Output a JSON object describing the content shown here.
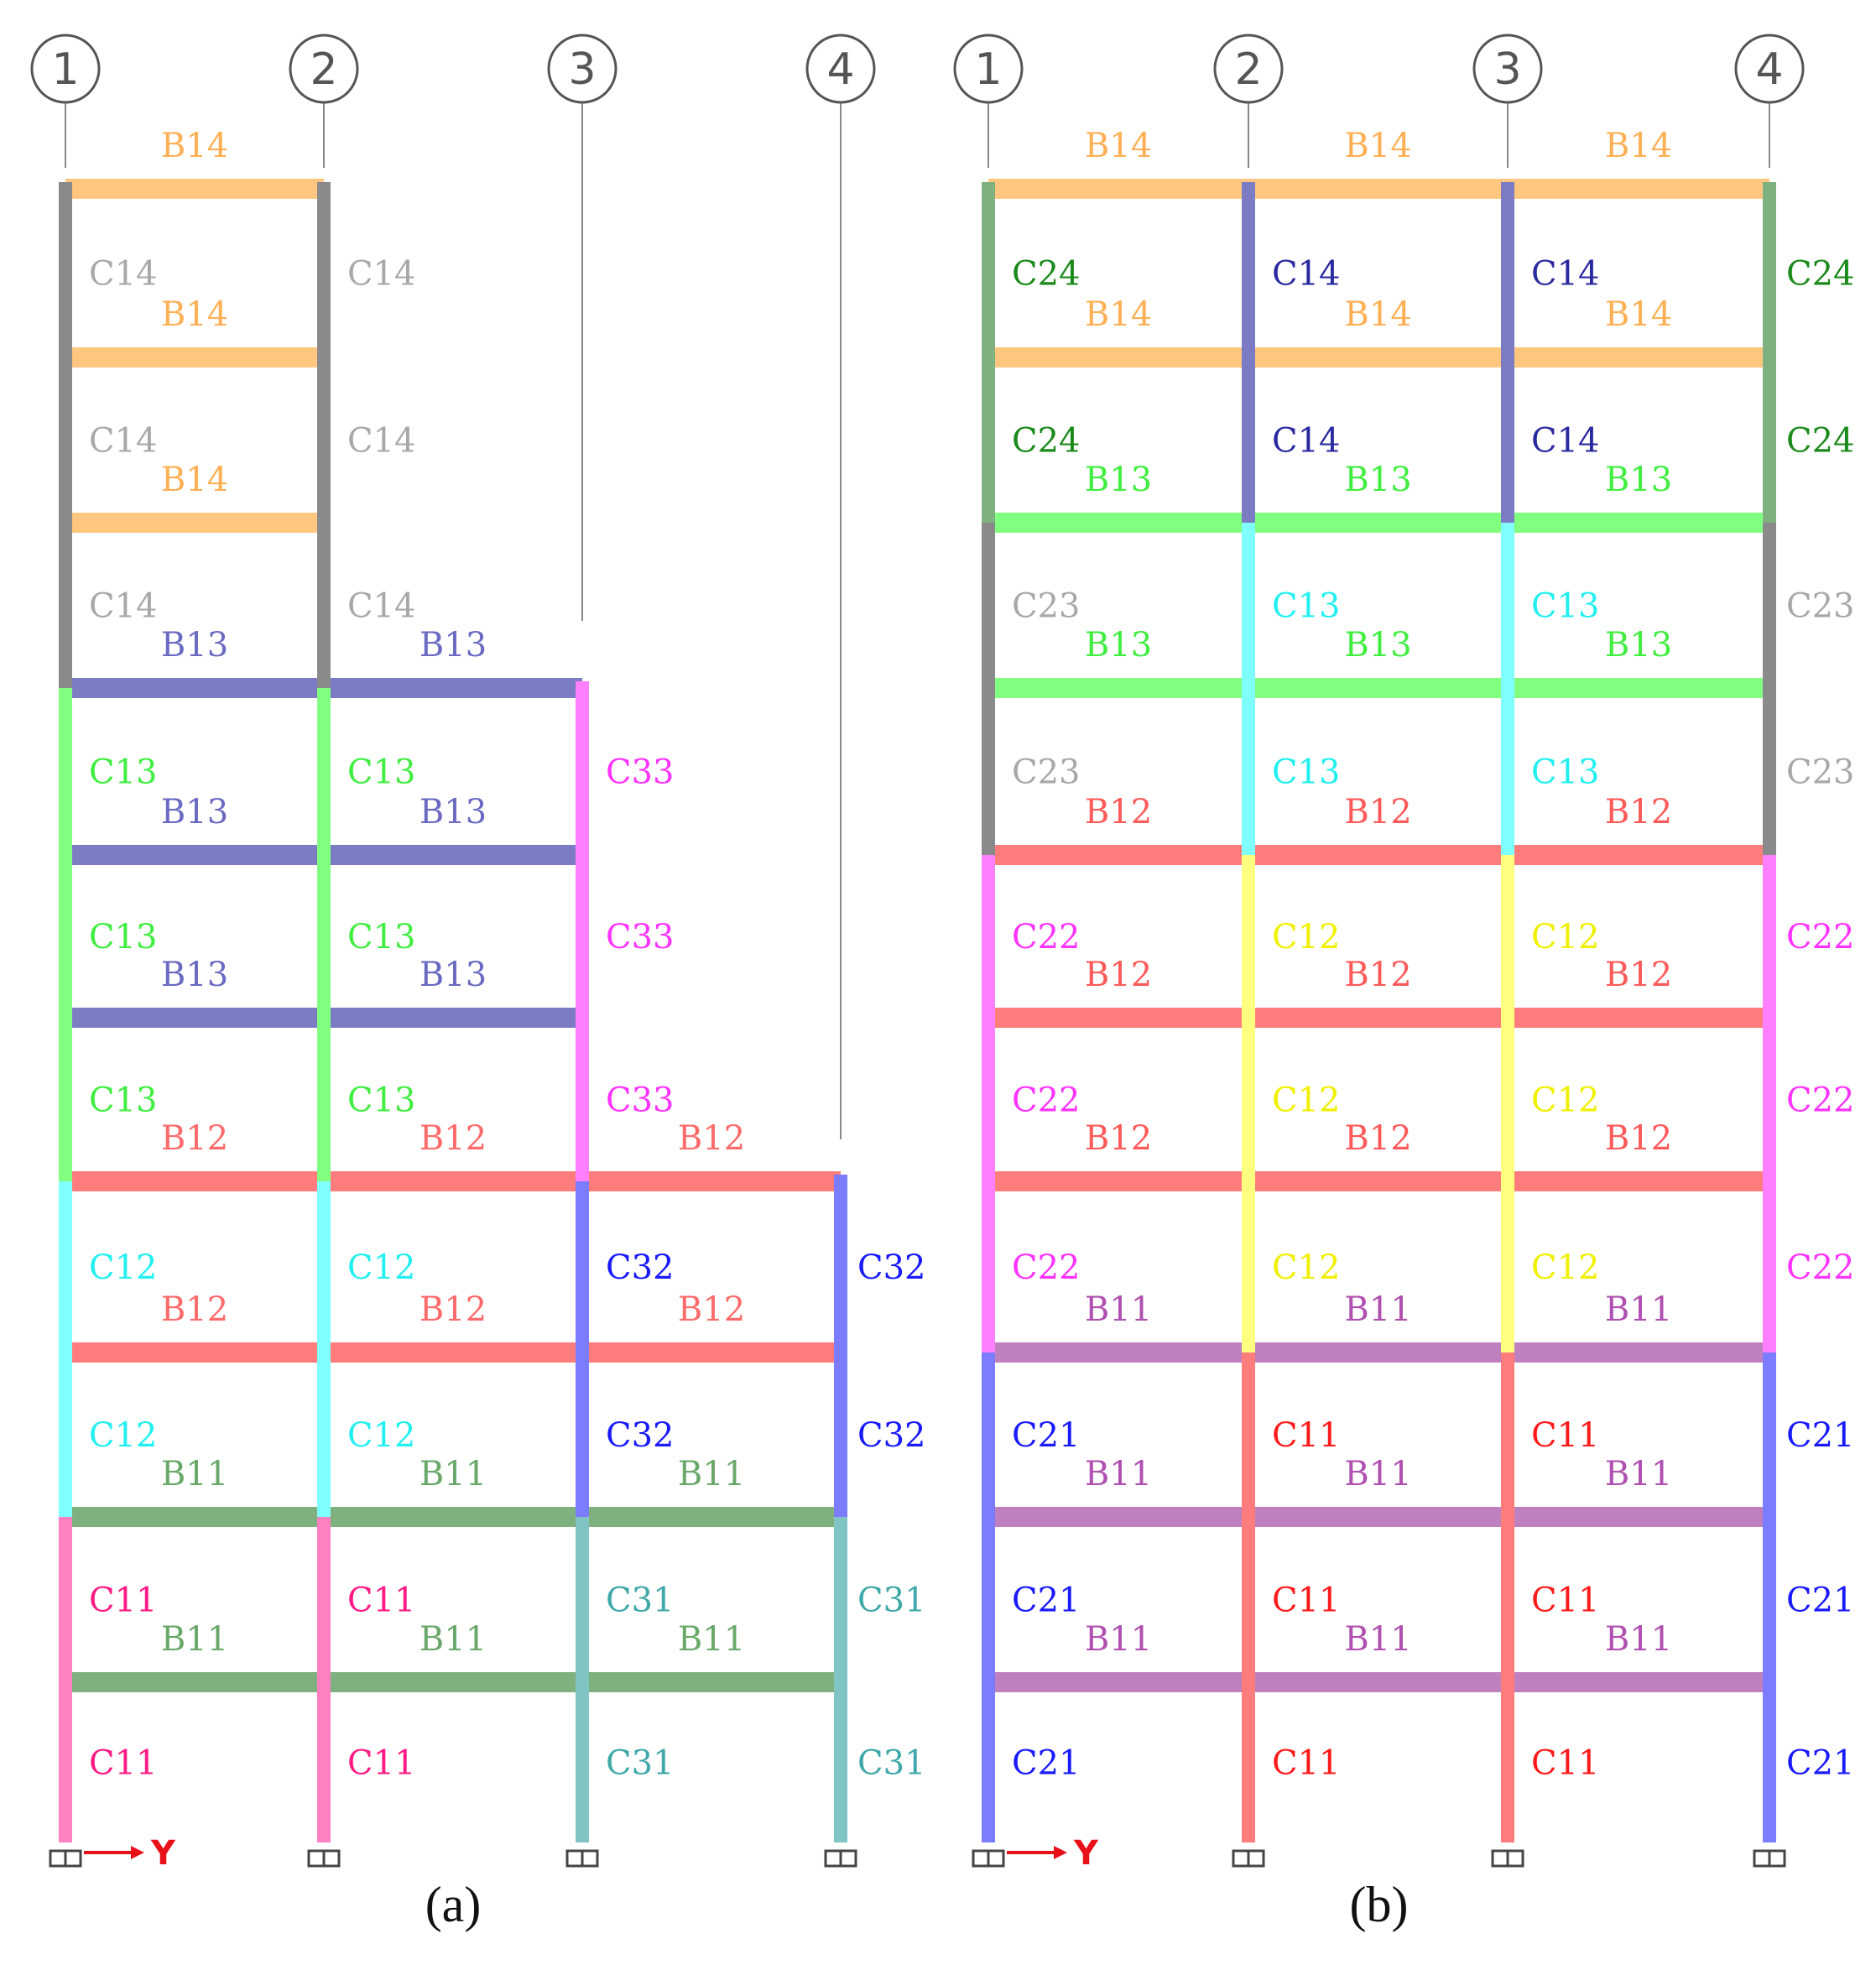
{
  "legend_colors": {
    "B11": "#7fb07f",
    "B12": "#ff7c7c",
    "B13": "#7c7cc4",
    "B14": "#ffc680",
    "C11": "#ff80c0",
    "C12": "#80ffff",
    "C13": "#80ff80",
    "C14": "#8a8a8a",
    "C31": "#80c4c4",
    "C32": "#7c7cff",
    "C33": "#ff80ff"
  },
  "label_colors": {
    "B11": "#6aa86a",
    "B12": "#ff6a6a",
    "B13": "#6a6ac2",
    "B14": "#ffb055",
    "C11": "#ff1a85",
    "C12": "#22f0f0",
    "C13": "#40ee40",
    "C14": "#a8a8a8",
    "C31": "#40a8a8",
    "C32": "#1a1aff",
    "C33": "#ff33ff"
  },
  "legend_colors_b": {
    "B11": "#bf80bf",
    "B12": "#ff7c7c",
    "B13": "#80ff80",
    "B14": "#ffc680",
    "C11": "#ff7c7c",
    "C12": "#ffff80",
    "C13": "#80ffff",
    "C14": "#7c7cc4",
    "C21": "#7c7cff",
    "C22": "#ff80ff",
    "C23": "#8a8a8a",
    "C24": "#7fb07f"
  },
  "label_colors_b": {
    "B11": "#b050b0",
    "B12": "#ff5a5a",
    "B13": "#40ee40",
    "B14": "#ffb055",
    "C11": "#ff1a1a",
    "C12": "#f0f000",
    "C13": "#22f0f0",
    "C14": "#2a2aa0",
    "C21": "#1a1aff",
    "C22": "#ff33ff",
    "C23": "#a8a8a8",
    "C24": "#1a8a1a"
  },
  "axis_label": "Y",
  "frames": [
    {
      "caption": "(a)",
      "grid_lines": [
        "1",
        "2",
        "3",
        "4"
      ],
      "columns": [
        [
          "C11",
          "C11",
          "C12",
          "C12",
          "C13",
          "C13",
          "C13",
          "C14",
          "C14",
          "C14"
        ],
        [
          "C11",
          "C11",
          "C12",
          "C12",
          "C13",
          "C13",
          "C13",
          "C14",
          "C14",
          "C14"
        ],
        [
          "C31",
          "C31",
          "C32",
          "C32",
          "C33",
          "C33",
          "C33"
        ],
        [
          "C31",
          "C31",
          "C32",
          "C32"
        ]
      ],
      "beams": [
        [
          "B11",
          "B11",
          "B11"
        ],
        [
          "B11",
          "B11",
          "B11"
        ],
        [
          "B12",
          "B12",
          "B12"
        ],
        [
          "B12",
          "B12",
          "B12"
        ],
        [
          "B13",
          "B13"
        ],
        [
          "B13",
          "B13"
        ],
        [
          "B13",
          "B13"
        ],
        [
          "B14"
        ],
        [
          "B14"
        ],
        [
          "B14"
        ]
      ]
    },
    {
      "caption": "(b)",
      "grid_lines": [
        "1",
        "2",
        "3",
        "4"
      ],
      "columns": [
        [
          "C21",
          "C21",
          "C21",
          "C22",
          "C22",
          "C22",
          "C23",
          "C23",
          "C24",
          "C24"
        ],
        [
          "C11",
          "C11",
          "C11",
          "C12",
          "C12",
          "C12",
          "C13",
          "C13",
          "C14",
          "C14"
        ],
        [
          "C11",
          "C11",
          "C11",
          "C12",
          "C12",
          "C12",
          "C13",
          "C13",
          "C14",
          "C14"
        ],
        [
          "C21",
          "C21",
          "C21",
          "C22",
          "C22",
          "C22",
          "C23",
          "C23",
          "C24",
          "C24"
        ]
      ],
      "beams": [
        [
          "B11",
          "B11",
          "B11"
        ],
        [
          "B11",
          "B11",
          "B11"
        ],
        [
          "B11",
          "B11",
          "B11"
        ],
        [
          "B12",
          "B12",
          "B12"
        ],
        [
          "B12",
          "B12",
          "B12"
        ],
        [
          "B12",
          "B12",
          "B12"
        ],
        [
          "B13",
          "B13",
          "B13"
        ],
        [
          "B13",
          "B13",
          "B13"
        ],
        [
          "B14",
          "B14",
          "B14"
        ],
        [
          "B14",
          "B14",
          "B14"
        ]
      ]
    }
  ]
}
